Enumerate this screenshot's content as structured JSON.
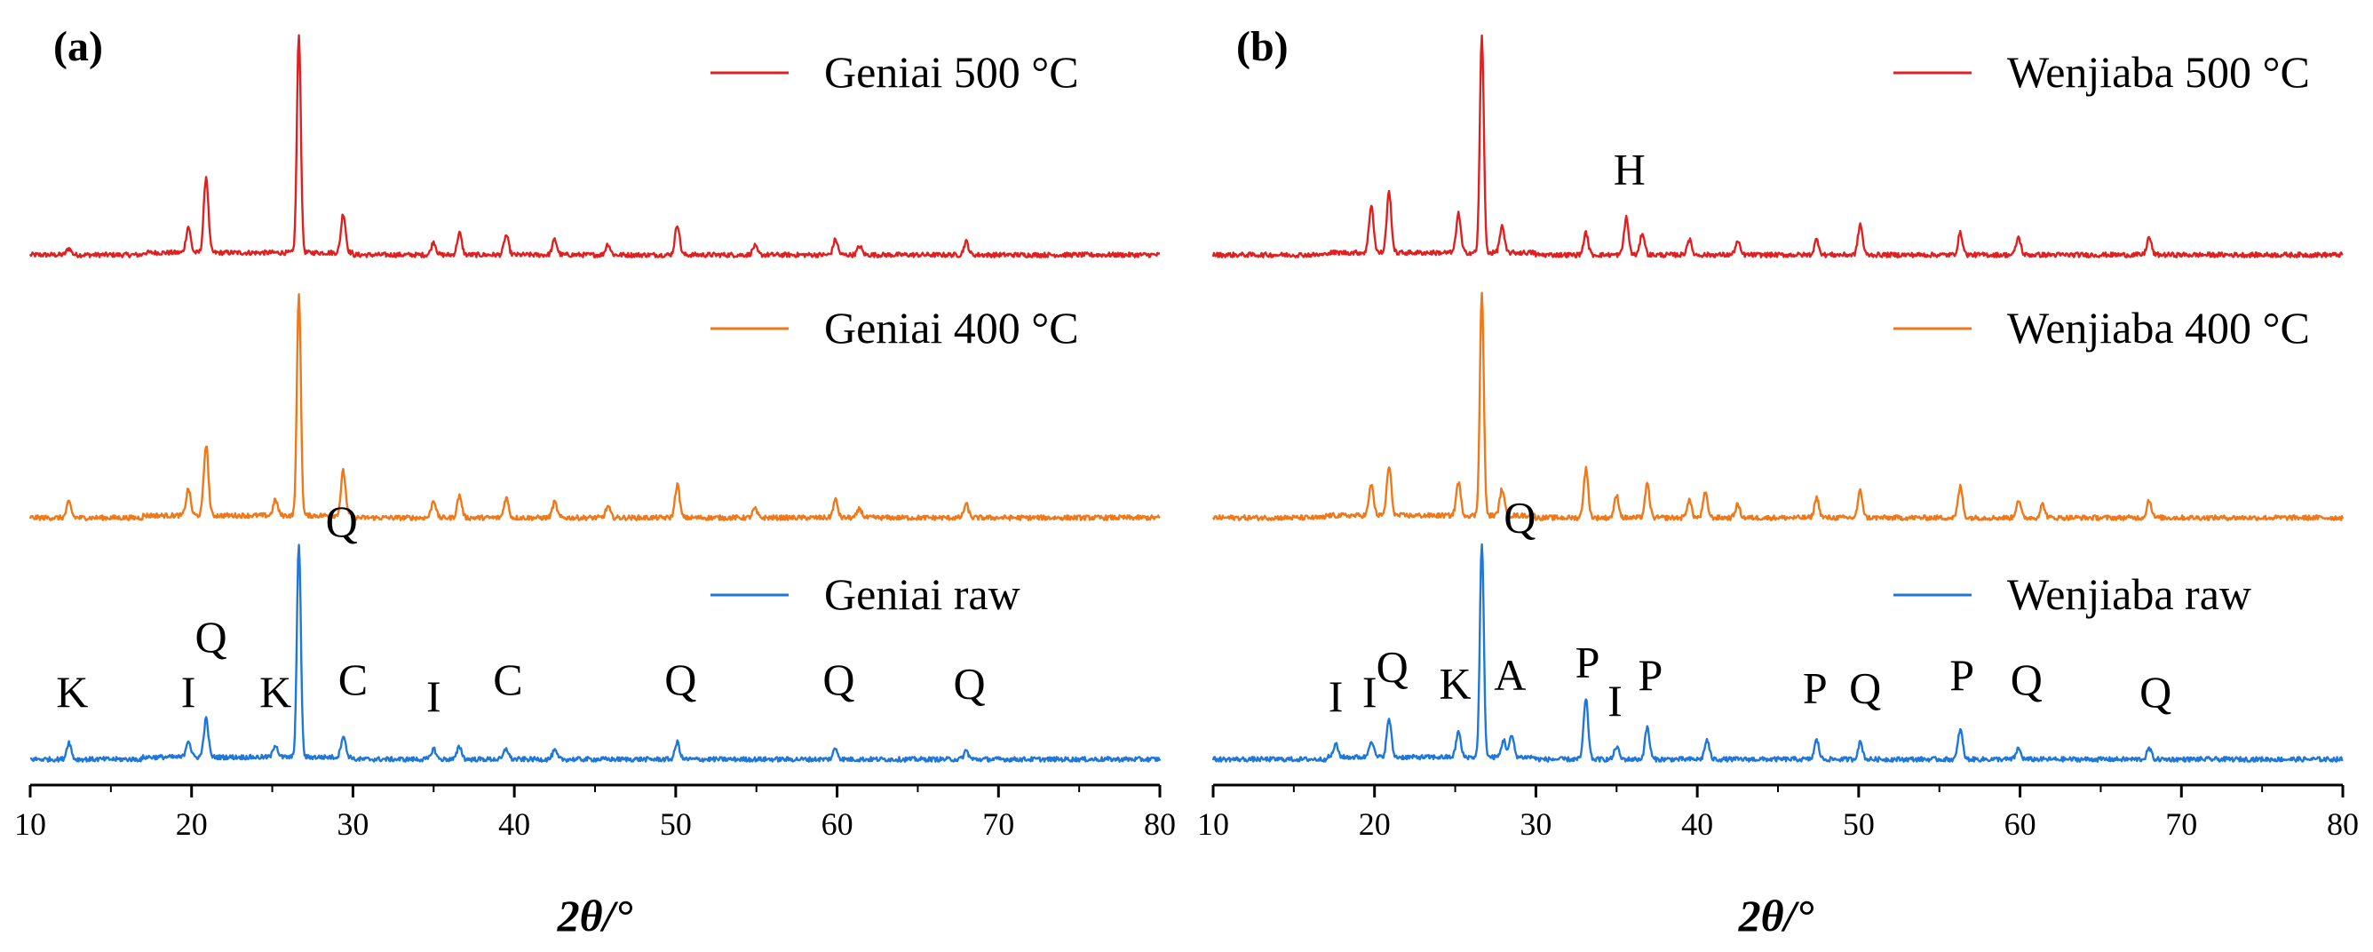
{
  "figure": {
    "colors": {
      "raw": "#1f77d9",
      "t400": "#f07819",
      "t500": "#e02020",
      "axis": "#000000"
    }
  },
  "chart_data": [
    {
      "panel": "(a)",
      "type": "line",
      "xlabel": "2θ/°",
      "xlim": [
        10,
        80
      ],
      "xticks": [
        "10",
        "20",
        "30",
        "40",
        "50",
        "60",
        "70",
        "80"
      ],
      "grid": false,
      "legend": "top-right (one entry per trace)",
      "series": [
        {
          "name": "Geniai 500 °C",
          "color_key": "t500",
          "peaks": [
            [
              12.4,
              0.03
            ],
            [
              19.8,
              0.12
            ],
            [
              20.9,
              0.35
            ],
            [
              26.65,
              1.0
            ],
            [
              29.4,
              0.18
            ],
            [
              35.0,
              0.06
            ],
            [
              36.6,
              0.1
            ],
            [
              39.5,
              0.09
            ],
            [
              42.5,
              0.07
            ],
            [
              45.8,
              0.05
            ],
            [
              50.1,
              0.14
            ],
            [
              54.9,
              0.04
            ],
            [
              59.9,
              0.07
            ],
            [
              61.4,
              0.04
            ],
            [
              68.0,
              0.06
            ]
          ]
        },
        {
          "name": "Geniai 400 °C",
          "color_key": "t400",
          "peaks": [
            [
              12.4,
              0.07
            ],
            [
              19.8,
              0.12
            ],
            [
              20.9,
              0.32
            ],
            [
              25.2,
              0.07
            ],
            [
              26.65,
              1.0
            ],
            [
              29.4,
              0.2
            ],
            [
              35.0,
              0.08
            ],
            [
              36.6,
              0.1
            ],
            [
              39.5,
              0.09
            ],
            [
              42.5,
              0.07
            ],
            [
              45.8,
              0.05
            ],
            [
              50.1,
              0.15
            ],
            [
              54.9,
              0.04
            ],
            [
              59.9,
              0.08
            ],
            [
              61.4,
              0.04
            ],
            [
              68.0,
              0.06
            ]
          ]
        },
        {
          "name": "Geniai raw",
          "color_key": "raw",
          "peaks": [
            [
              12.4,
              0.08
            ],
            [
              19.8,
              0.08
            ],
            [
              20.9,
              0.18
            ],
            [
              25.2,
              0.06
            ],
            [
              26.65,
              1.0
            ],
            [
              29.4,
              0.1
            ],
            [
              35.0,
              0.05
            ],
            [
              36.6,
              0.06
            ],
            [
              39.5,
              0.05
            ],
            [
              42.5,
              0.04
            ],
            [
              50.1,
              0.08
            ],
            [
              59.9,
              0.05
            ],
            [
              68.0,
              0.04
            ]
          ]
        }
      ],
      "phase_labels": [
        {
          "text": "K",
          "x": 12.6,
          "level": 0.22
        },
        {
          "text": "I",
          "x": 19.8,
          "level": 0.22
        },
        {
          "text": "Q",
          "x": 21.2,
          "level": 0.48
        },
        {
          "text": "K",
          "x": 25.2,
          "level": 0.22
        },
        {
          "text": "Q",
          "x": 29.3,
          "level": 1.02
        },
        {
          "text": "C",
          "x": 30.0,
          "level": 0.28
        },
        {
          "text": "I",
          "x": 35.0,
          "level": 0.2
        },
        {
          "text": "C",
          "x": 39.6,
          "level": 0.28
        },
        {
          "text": "Q",
          "x": 50.3,
          "level": 0.28
        },
        {
          "text": "Q",
          "x": 60.1,
          "level": 0.28
        },
        {
          "text": "Q",
          "x": 68.2,
          "level": 0.26
        }
      ]
    },
    {
      "panel": "(b)",
      "type": "line",
      "xlabel": "2θ/°",
      "xlim": [
        10,
        80
      ],
      "xticks": [
        "10",
        "20",
        "30",
        "40",
        "50",
        "60",
        "70",
        "80"
      ],
      "grid": false,
      "legend": "top-right (one entry per trace)",
      "series": [
        {
          "name": "Wenjiaba 500 °C",
          "color_key": "t500",
          "peaks": [
            [
              19.8,
              0.22
            ],
            [
              20.9,
              0.28
            ],
            [
              25.2,
              0.18
            ],
            [
              26.65,
              1.0
            ],
            [
              27.9,
              0.12
            ],
            [
              33.1,
              0.1
            ],
            [
              35.6,
              0.17
            ],
            [
              36.6,
              0.1
            ],
            [
              39.5,
              0.07
            ],
            [
              42.5,
              0.06
            ],
            [
              47.4,
              0.07
            ],
            [
              50.1,
              0.14
            ],
            [
              56.3,
              0.1
            ],
            [
              59.9,
              0.08
            ],
            [
              68.0,
              0.08
            ]
          ]
        },
        {
          "name": "Wenjiaba 400 °C",
          "color_key": "t400",
          "peaks": [
            [
              19.8,
              0.14
            ],
            [
              20.9,
              0.22
            ],
            [
              25.2,
              0.15
            ],
            [
              26.65,
              1.0
            ],
            [
              27.9,
              0.12
            ],
            [
              33.1,
              0.22
            ],
            [
              35.0,
              0.1
            ],
            [
              36.9,
              0.15
            ],
            [
              39.5,
              0.08
            ],
            [
              40.5,
              0.11
            ],
            [
              42.5,
              0.06
            ],
            [
              47.4,
              0.09
            ],
            [
              50.1,
              0.12
            ],
            [
              56.3,
              0.14
            ],
            [
              59.9,
              0.08
            ],
            [
              61.4,
              0.06
            ],
            [
              68.0,
              0.08
            ]
          ]
        },
        {
          "name": "Wenjiaba raw",
          "color_key": "raw",
          "peaks": [
            [
              17.6,
              0.06
            ],
            [
              19.8,
              0.08
            ],
            [
              20.9,
              0.18
            ],
            [
              25.2,
              0.12
            ],
            [
              26.65,
              1.0
            ],
            [
              28.0,
              0.08
            ],
            [
              28.5,
              0.1
            ],
            [
              33.1,
              0.28
            ],
            [
              35.0,
              0.06
            ],
            [
              36.9,
              0.15
            ],
            [
              40.6,
              0.09
            ],
            [
              47.4,
              0.09
            ],
            [
              50.1,
              0.08
            ],
            [
              56.3,
              0.14
            ],
            [
              59.9,
              0.05
            ],
            [
              68.0,
              0.05
            ]
          ]
        }
      ],
      "phase_labels": [
        {
          "text": "I",
          "x": 17.6,
          "level": 0.2
        },
        {
          "text": "I",
          "x": 19.7,
          "level": 0.22
        },
        {
          "text": "Q",
          "x": 21.1,
          "level": 0.34
        },
        {
          "text": "K",
          "x": 25.0,
          "level": 0.26
        },
        {
          "text": "Q",
          "x": 29.0,
          "level": 1.04
        },
        {
          "text": "A",
          "x": 28.4,
          "level": 0.3
        },
        {
          "text": "P",
          "x": 33.2,
          "level": 0.36
        },
        {
          "text": "I",
          "x": 34.9,
          "level": 0.18
        },
        {
          "text": "P",
          "x": 37.1,
          "level": 0.3
        },
        {
          "text": "P",
          "x": 47.3,
          "level": 0.24
        },
        {
          "text": "Q",
          "x": 50.4,
          "level": 0.24
        },
        {
          "text": "P",
          "x": 56.4,
          "level": 0.3
        },
        {
          "text": "Q",
          "x": 60.4,
          "level": 0.28
        },
        {
          "text": "Q",
          "x": 68.4,
          "level": 0.22
        },
        {
          "text": "H",
          "x": 35.8,
          "level": 0.3,
          "trace": 0
        }
      ]
    }
  ]
}
